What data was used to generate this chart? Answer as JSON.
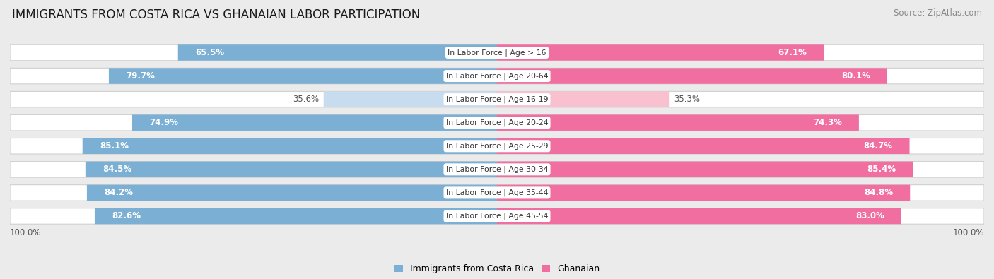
{
  "title": "IMMIGRANTS FROM COSTA RICA VS GHANAIAN LABOR PARTICIPATION",
  "source": "Source: ZipAtlas.com",
  "categories": [
    "In Labor Force | Age > 16",
    "In Labor Force | Age 20-64",
    "In Labor Force | Age 16-19",
    "In Labor Force | Age 20-24",
    "In Labor Force | Age 25-29",
    "In Labor Force | Age 30-34",
    "In Labor Force | Age 35-44",
    "In Labor Force | Age 45-54"
  ],
  "left_values": [
    65.5,
    79.7,
    35.6,
    74.9,
    85.1,
    84.5,
    84.2,
    82.6
  ],
  "right_values": [
    67.1,
    80.1,
    35.3,
    74.3,
    84.7,
    85.4,
    84.8,
    83.0
  ],
  "left_color": "#7BAFD4",
  "right_color": "#F06FA0",
  "left_color_light": "#C8DCF0",
  "right_color_light": "#F9C0D0",
  "label_left": "Immigrants from Costa Rica",
  "label_right": "Ghanaian",
  "bg_color": "#EBEBEB",
  "bar_bg": "#F5F5F5",
  "row_bg": "#E8E8E8",
  "max_val": 100.0,
  "title_fontsize": 12,
  "source_fontsize": 8.5,
  "axis_label_fontsize": 8.5,
  "bar_label_fontsize": 8.5,
  "cat_label_fontsize": 7.8
}
